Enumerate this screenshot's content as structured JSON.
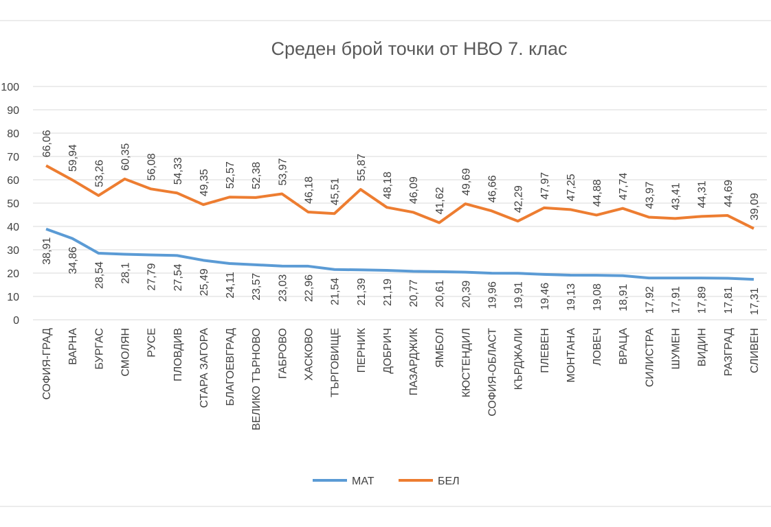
{
  "chart_data": {
    "type": "line",
    "title": "Среден брой точки от НВО 7. клас",
    "categories": [
      "СОФИЯ-ГРАД",
      "ВАРНА",
      "БУРГАС",
      "СМОЛЯН",
      "РУСЕ",
      "ПЛОВДИВ",
      "СТАРА ЗАГОРА",
      "БЛАГОЕВГРАД",
      "ВЕЛИКО ТЪРНОВО",
      "ГАБРОВО",
      "ХАСКОВО",
      "ТЪРГОВИЩЕ",
      "ПЕРНИК",
      "ДОБРИЧ",
      "ПАЗАРДЖИК",
      "ЯМБОЛ",
      "КЮСТЕНДИЛ",
      "СОФИЯ-ОБЛАСТ",
      "КЪРДЖАЛИ",
      "ПЛЕВЕН",
      "МОНТАНА",
      "ЛОВЕЧ",
      "ВРАЦА",
      "СИЛИСТРА",
      "ШУМЕН",
      "ВИДИН",
      "РАЗГРАД",
      "СЛИВЕН"
    ],
    "series": [
      {
        "name": "МАТ",
        "color": "#5b9bd5",
        "label_side": "below",
        "values": [
          38.91,
          34.86,
          28.54,
          28.1,
          27.79,
          27.54,
          25.49,
          24.11,
          23.57,
          23.03,
          22.96,
          21.54,
          21.39,
          21.19,
          20.77,
          20.61,
          20.39,
          19.96,
          19.91,
          19.46,
          19.13,
          19.08,
          18.91,
          17.92,
          17.91,
          17.89,
          17.81,
          17.31
        ],
        "value_labels": [
          "38,91",
          "34,86",
          "28,54",
          "28,1",
          "27,79",
          "27,54",
          "25,49",
          "24,11",
          "23,57",
          "23,03",
          "22,96",
          "21,54",
          "21,39",
          "21,19",
          "20,77",
          "20,61",
          "20,39",
          "19,96",
          "19,91",
          "19,46",
          "19,13",
          "19,08",
          "18,91",
          "17,92",
          "17,91",
          "17,89",
          "17,81",
          "17,31"
        ]
      },
      {
        "name": "БЕЛ",
        "color": "#ed7d31",
        "label_side": "above",
        "values": [
          66.06,
          59.94,
          53.26,
          60.35,
          56.08,
          54.33,
          49.35,
          52.57,
          52.38,
          53.97,
          46.18,
          45.51,
          55.87,
          48.18,
          46.09,
          41.62,
          49.69,
          46.66,
          42.29,
          47.97,
          47.25,
          44.88,
          47.74,
          43.97,
          43.41,
          44.31,
          44.69,
          39.09
        ],
        "value_labels": [
          "66,06",
          "59,94",
          "53,26",
          "60,35",
          "56,08",
          "54,33",
          "49,35",
          "52,57",
          "52,38",
          "53,97",
          "46,18",
          "45,51",
          "55,87",
          "48,18",
          "46,09",
          "41,62",
          "49,69",
          "46,66",
          "42,29",
          "47,97",
          "47,25",
          "44,88",
          "47,74",
          "43,97",
          "43,41",
          "44,31",
          "44,69",
          "39,09"
        ]
      }
    ],
    "ylim": [
      0,
      100
    ],
    "yticks": [
      0,
      10,
      20,
      30,
      40,
      50,
      60,
      70,
      80,
      90,
      100
    ],
    "grid": true,
    "legend": "bottom"
  }
}
